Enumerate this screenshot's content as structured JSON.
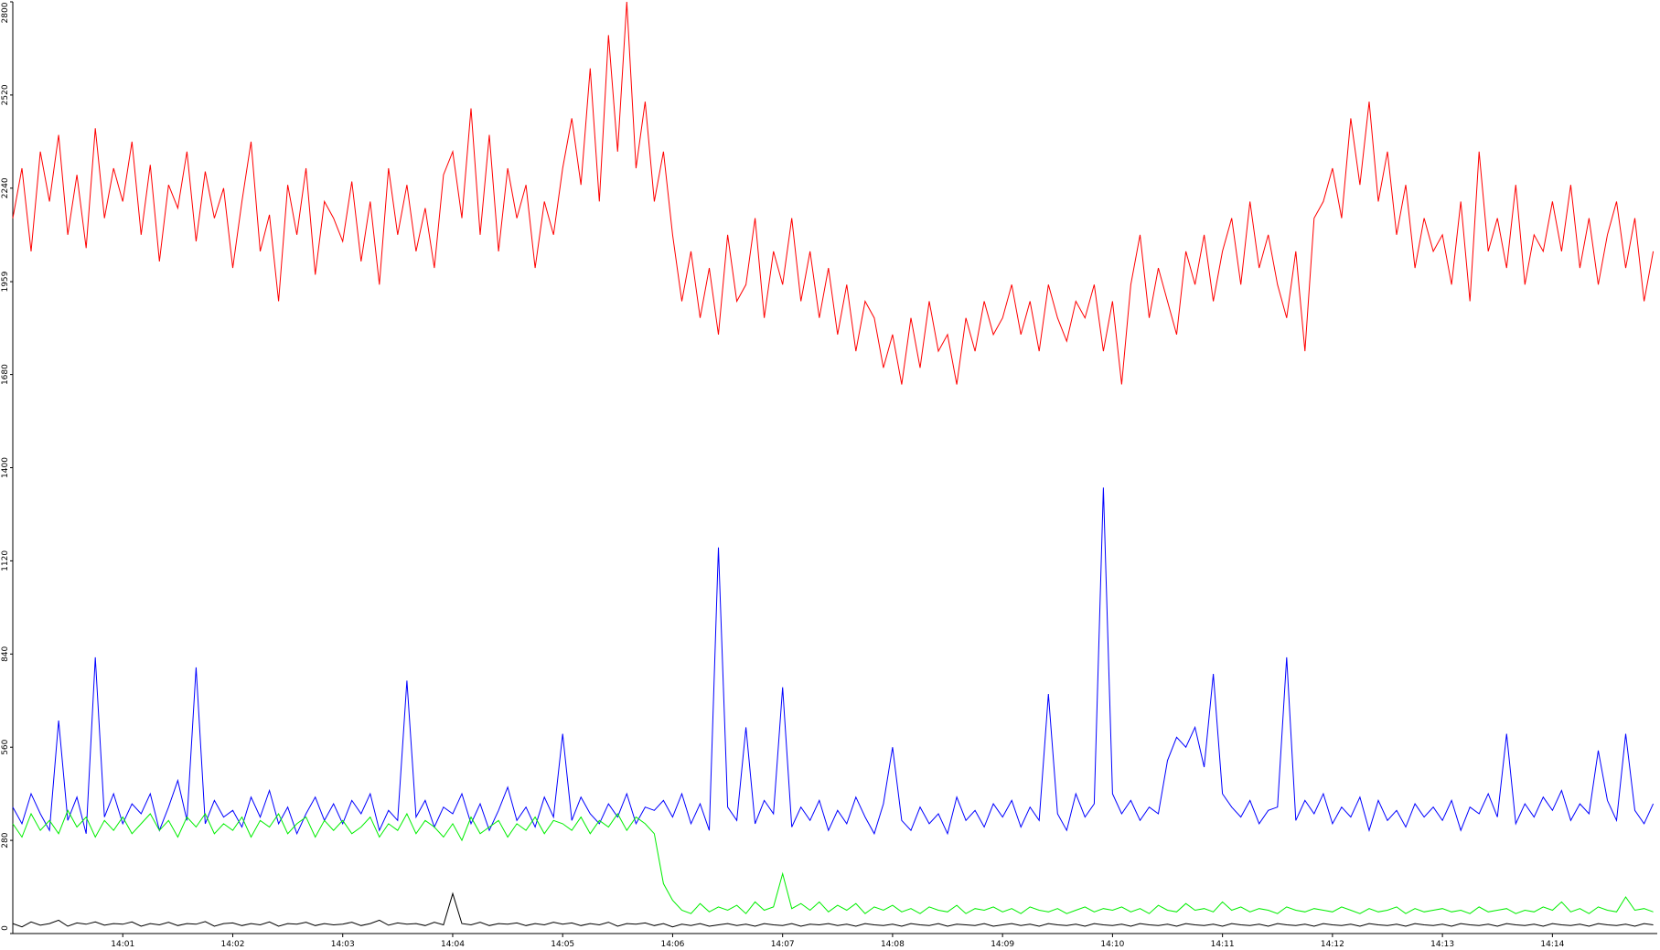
{
  "chart_data": {
    "type": "line",
    "categories": [
      null,
      null,
      null,
      null,
      null,
      null,
      null,
      null,
      null,
      null,
      null,
      null,
      "14:01",
      null,
      null,
      null,
      null,
      null,
      null,
      null,
      null,
      null,
      null,
      null,
      "14:02",
      null,
      null,
      null,
      null,
      null,
      null,
      null,
      null,
      null,
      null,
      null,
      "14:03",
      null,
      null,
      null,
      null,
      null,
      null,
      null,
      null,
      null,
      null,
      null,
      "14:04",
      null,
      null,
      null,
      null,
      null,
      null,
      null,
      null,
      null,
      null,
      null,
      "14:05",
      null,
      null,
      null,
      null,
      null,
      null,
      null,
      null,
      null,
      null,
      null,
      "14:06",
      null,
      null,
      null,
      null,
      null,
      null,
      null,
      null,
      null,
      null,
      null,
      "14:07",
      null,
      null,
      null,
      null,
      null,
      null,
      null,
      null,
      null,
      null,
      null,
      "14:08",
      null,
      null,
      null,
      null,
      null,
      null,
      null,
      null,
      null,
      null,
      null,
      "14:09",
      null,
      null,
      null,
      null,
      null,
      null,
      null,
      null,
      null,
      null,
      null,
      "14:10",
      null,
      null,
      null,
      null,
      null,
      null,
      null,
      null,
      null,
      null,
      null,
      "14:11",
      null,
      null,
      null,
      null,
      null,
      null,
      null,
      null,
      null,
      null,
      null,
      "14:12",
      null,
      null,
      null,
      null,
      null,
      null,
      null,
      null,
      null,
      null,
      null,
      "14:13",
      null,
      null,
      null,
      null,
      null,
      null,
      null,
      null,
      null,
      null,
      null,
      "14:14",
      null,
      null,
      null,
      null,
      null,
      null,
      null,
      null,
      null,
      null,
      null
    ],
    "series": [
      {
        "color": "#ff0000",
        "values": [
          2150,
          2300,
          2050,
          2350,
          2200,
          2400,
          2100,
          2280,
          2060,
          2420,
          2150,
          2300,
          2200,
          2380,
          2100,
          2310,
          2020,
          2250,
          2180,
          2350,
          2080,
          2290,
          2150,
          2240,
          2000,
          2200,
          2380,
          2050,
          2160,
          1900,
          2250,
          2100,
          2300,
          1980,
          2200,
          2150,
          2080,
          2260,
          2020,
          2200,
          1950,
          2300,
          2100,
          2250,
          2050,
          2180,
          2000,
          2280,
          2350,
          2150,
          2480,
          2100,
          2400,
          2050,
          2300,
          2150,
          2250,
          2000,
          2200,
          2100,
          2300,
          2450,
          2250,
          2600,
          2200,
          2700,
          2350,
          2800,
          2300,
          2500,
          2200,
          2350,
          2100,
          1900,
          2050,
          1850,
          2000,
          1800,
          2100,
          1900,
          1950,
          2150,
          1850,
          2050,
          1950,
          2150,
          1900,
          2050,
          1850,
          2000,
          1800,
          1950,
          1750,
          1900,
          1850,
          1700,
          1800,
          1650,
          1850,
          1700,
          1900,
          1750,
          1800,
          1650,
          1850,
          1750,
          1900,
          1800,
          1850,
          1950,
          1800,
          1900,
          1750,
          1950,
          1850,
          1780,
          1900,
          1850,
          1950,
          1750,
          1900,
          1650,
          1950,
          2100,
          1850,
          2000,
          1900,
          1800,
          2050,
          1950,
          2100,
          1900,
          2050,
          2150,
          1950,
          2200,
          2000,
          2100,
          1950,
          1850,
          2050,
          1750,
          2150,
          2200,
          2300,
          2150,
          2450,
          2250,
          2500,
          2200,
          2350,
          2100,
          2250,
          2000,
          2150,
          2050,
          2100,
          1950,
          2200,
          1900,
          2350,
          2050,
          2150,
          2000,
          2250,
          1950,
          2100,
          2050,
          2200,
          2050,
          2250,
          2000,
          2150,
          1950,
          2100,
          2200,
          2000,
          2150,
          1900,
          2050
        ]
      },
      {
        "color": "#0000ff",
        "values": [
          380,
          330,
          420,
          360,
          310,
          640,
          340,
          410,
          300,
          830,
          350,
          420,
          330,
          390,
          360,
          420,
          310,
          380,
          460,
          340,
          800,
          330,
          400,
          350,
          370,
          320,
          410,
          350,
          430,
          330,
          380,
          300,
          360,
          410,
          340,
          390,
          330,
          400,
          360,
          420,
          310,
          370,
          340,
          760,
          350,
          400,
          320,
          380,
          360,
          420,
          330,
          390,
          310,
          370,
          440,
          340,
          380,
          320,
          410,
          350,
          600,
          340,
          410,
          360,
          330,
          390,
          350,
          420,
          330,
          380,
          370,
          400,
          350,
          420,
          330,
          390,
          310,
          1160,
          380,
          340,
          620,
          330,
          400,
          360,
          740,
          320,
          380,
          340,
          400,
          310,
          370,
          330,
          410,
          350,
          300,
          390,
          560,
          340,
          310,
          380,
          330,
          360,
          300,
          410,
          340,
          370,
          320,
          390,
          350,
          400,
          320,
          380,
          340,
          720,
          360,
          310,
          420,
          350,
          390,
          1340,
          420,
          360,
          400,
          340,
          380,
          360,
          520,
          590,
          560,
          620,
          500,
          780,
          420,
          380,
          350,
          400,
          330,
          370,
          380,
          830,
          340,
          400,
          360,
          420,
          330,
          380,
          350,
          410,
          310,
          400,
          340,
          370,
          320,
          390,
          350,
          380,
          340,
          400,
          310,
          380,
          360,
          420,
          350,
          600,
          330,
          390,
          350,
          410,
          370,
          430,
          340,
          390,
          360,
          550,
          400,
          340,
          600,
          370,
          330,
          390
        ]
      },
      {
        "color": "#00ee00",
        "values": [
          330,
          290,
          360,
          310,
          340,
          300,
          370,
          320,
          350,
          290,
          340,
          310,
          350,
          300,
          330,
          360,
          310,
          340,
          290,
          350,
          320,
          360,
          300,
          330,
          310,
          350,
          290,
          340,
          320,
          360,
          300,
          330,
          350,
          290,
          340,
          310,
          340,
          300,
          320,
          350,
          290,
          330,
          310,
          360,
          300,
          340,
          320,
          290,
          330,
          280,
          350,
          300,
          320,
          340,
          290,
          330,
          310,
          350,
          300,
          340,
          330,
          310,
          350,
          300,
          340,
          320,
          360,
          310,
          350,
          330,
          300,
          150,
          100,
          70,
          60,
          90,
          65,
          80,
          70,
          85,
          60,
          95,
          70,
          80,
          180,
          75,
          90,
          70,
          95,
          65,
          85,
          70,
          90,
          60,
          80,
          70,
          85,
          65,
          75,
          60,
          80,
          70,
          65,
          85,
          60,
          75,
          70,
          80,
          65,
          75,
          60,
          80,
          70,
          65,
          75,
          60,
          70,
          80,
          65,
          75,
          70,
          80,
          65,
          75,
          60,
          85,
          70,
          65,
          90,
          70,
          75,
          65,
          95,
          70,
          80,
          65,
          75,
          70,
          60,
          80,
          70,
          65,
          75,
          70,
          65,
          80,
          70,
          60,
          75,
          65,
          70,
          80,
          60,
          75,
          65,
          70,
          75,
          65,
          70,
          60,
          80,
          65,
          70,
          75,
          60,
          70,
          65,
          80,
          70,
          95,
          65,
          75,
          60,
          80,
          70,
          65,
          110,
          70,
          75,
          65
        ]
      },
      {
        "color": "#000000",
        "values": [
          30,
          20,
          35,
          25,
          30,
          40,
          22,
          32,
          28,
          35,
          25,
          30,
          28,
          35,
          22,
          30,
          26,
          34,
          24,
          30,
          28,
          36,
          22,
          30,
          32,
          24,
          30,
          26,
          35,
          22,
          30,
          28,
          34,
          24,
          30,
          26,
          28,
          34,
          24,
          30,
          40,
          25,
          32,
          28,
          30,
          24,
          34,
          26,
          120,
          30,
          26,
          34,
          24,
          30,
          28,
          32,
          24,
          30,
          26,
          34,
          28,
          32,
          24,
          30,
          26,
          34,
          22,
          30,
          28,
          32,
          24,
          30,
          20,
          28,
          24,
          30,
          22,
          26,
          30,
          24,
          28,
          22,
          30,
          26,
          24,
          30,
          22,
          28,
          26,
          30,
          24,
          28,
          22,
          30,
          26,
          24,
          28,
          22,
          30,
          26,
          24,
          30,
          22,
          28,
          26,
          24,
          30,
          22,
          26,
          30,
          24,
          28,
          22,
          30,
          26,
          24,
          28,
          22,
          30,
          26,
          24,
          28,
          22,
          30,
          26,
          24,
          28,
          22,
          30,
          26,
          24,
          28,
          22,
          30,
          26,
          24,
          28,
          22,
          30,
          26,
          24,
          28,
          22,
          30,
          26,
          24,
          28,
          22,
          30,
          26,
          24,
          28,
          22,
          30,
          26,
          24,
          28,
          22,
          30,
          26,
          24,
          28,
          22,
          30,
          26,
          24,
          28,
          22,
          30,
          26,
          24,
          28,
          22,
          30,
          26,
          24,
          28,
          22,
          30,
          26
        ]
      }
    ],
    "ylim": [
      0,
      2800
    ],
    "yticks": [
      0,
      280,
      560,
      840,
      1120,
      1400,
      1680,
      1959,
      2240,
      2520,
      2800
    ]
  }
}
